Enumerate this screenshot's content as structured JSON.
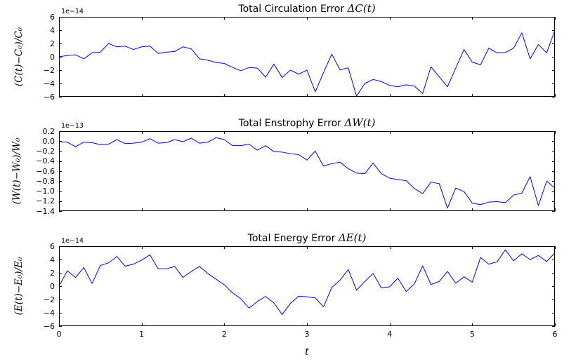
{
  "x_axis": {
    "label": "t",
    "ticks": [
      0,
      1,
      2,
      3,
      4,
      5,
      6
    ],
    "tick_labels": [
      "0",
      "1",
      "2",
      "3",
      "4",
      "5",
      "6"
    ]
  },
  "chart_data": [
    {
      "type": "line",
      "title_text": "Total Circulation Error ",
      "title_math": "ΔC(t)",
      "ylabel": "(C(t)−C₀)/C₀",
      "offset_label": "1e−14",
      "unit_scale": "1e-14",
      "xlim": [
        0,
        6
      ],
      "ylim": [
        -6,
        6
      ],
      "dt": 0.1,
      "grid": false,
      "yticks": [
        6,
        4,
        2,
        0,
        -2,
        -4,
        -6
      ],
      "ytick_labels": [
        "6",
        "4",
        "2",
        "0",
        "−2",
        "−4",
        "−6"
      ],
      "line_color": "#0000ee",
      "values": [
        0.0,
        0.2,
        0.3,
        -0.3,
        0.6,
        0.7,
        2.0,
        1.5,
        1.6,
        1.1,
        1.5,
        1.6,
        0.5,
        0.7,
        0.8,
        1.5,
        1.2,
        -0.3,
        -0.5,
        -0.85,
        -1.0,
        -1.6,
        -2.1,
        -1.6,
        -1.7,
        -3.05,
        -1.1,
        -3.1,
        -2.0,
        -2.6,
        -2.0,
        -5.25,
        -2.4,
        0.4,
        -1.95,
        -1.65,
        -5.9,
        -4.0,
        -3.4,
        -3.7,
        -4.3,
        -4.5,
        -4.2,
        -4.4,
        -5.5,
        -1.5,
        -3.0,
        -4.5,
        -1.7,
        1.1,
        -0.8,
        -1.2,
        1.3,
        0.6,
        0.65,
        1.3,
        3.6,
        -0.3,
        1.85,
        0.6,
        4.0
      ]
    },
    {
      "type": "line",
      "title_text": "Total Enstrophy Error ",
      "title_math": "ΔW(t)",
      "ylabel": "(W(t)−W₀)/W₀",
      "offset_label": "1e−13",
      "unit_scale": "1e-13",
      "xlim": [
        0,
        6
      ],
      "ylim": [
        -1.4,
        0.2
      ],
      "dt": 0.1,
      "grid": false,
      "yticks": [
        0.2,
        0.0,
        -0.2,
        -0.4,
        -0.6,
        -0.8,
        -1.0,
        -1.2,
        -1.4
      ],
      "ytick_labels": [
        "0.2",
        "0.0",
        "−0.2",
        "−0.4",
        "−0.6",
        "−0.8",
        "−1.0",
        "−1.2",
        "−1.4"
      ],
      "line_color": "#0000ee",
      "values": [
        -0.01,
        -0.02,
        -0.11,
        -0.02,
        -0.03,
        -0.07,
        -0.06,
        0.03,
        -0.05,
        -0.04,
        -0.02,
        0.05,
        -0.04,
        -0.03,
        0.03,
        -0.01,
        0.06,
        -0.04,
        -0.02,
        0.07,
        0.03,
        -0.09,
        -0.09,
        -0.06,
        -0.18,
        -0.09,
        -0.21,
        -0.22,
        -0.25,
        -0.27,
        -0.38,
        -0.2,
        -0.5,
        -0.45,
        -0.42,
        -0.55,
        -0.64,
        -0.65,
        -0.44,
        -0.65,
        -0.74,
        -0.77,
        -0.79,
        -0.95,
        -1.05,
        -0.82,
        -0.85,
        -1.34,
        -0.94,
        -1.01,
        -1.24,
        -1.27,
        -1.22,
        -1.21,
        -1.23,
        -1.08,
        -1.04,
        -0.71,
        -1.29,
        -0.8,
        -0.94
      ]
    },
    {
      "type": "line",
      "title_text": "Total Energy Error ",
      "title_math": "ΔE(t)",
      "ylabel": "(E(t)−E₀)/E₀",
      "offset_label": "1e−14",
      "unit_scale": "1e-14",
      "xlim": [
        0,
        6
      ],
      "ylim": [
        -6,
        6
      ],
      "dt": 0.1,
      "grid": false,
      "yticks": [
        6,
        4,
        2,
        0,
        -2,
        -4,
        -6
      ],
      "ytick_labels": [
        "6",
        "4",
        "2",
        "0",
        "−2",
        "−4",
        "−6"
      ],
      "line_color": "#0000ee",
      "values": [
        0.0,
        2.3,
        1.3,
        2.8,
        0.4,
        3.1,
        3.5,
        4.45,
        3.0,
        3.3,
        3.9,
        4.7,
        2.6,
        2.6,
        2.95,
        1.3,
        2.2,
        2.95,
        1.9,
        1.05,
        0.2,
        -1.0,
        -1.9,
        -3.3,
        -2.3,
        -1.55,
        -2.5,
        -4.26,
        -2.6,
        -1.5,
        -1.6,
        -1.75,
        -3.1,
        -0.2,
        0.9,
        2.5,
        -0.6,
        0.7,
        1.9,
        -0.25,
        -0.1,
        1.2,
        -0.8,
        0.35,
        3.05,
        0.25,
        0.7,
        2.2,
        0.45,
        1.4,
        0.6,
        4.3,
        3.3,
        3.65,
        5.45,
        3.8,
        4.85,
        4.0,
        4.6,
        3.7,
        5.0
      ]
    }
  ]
}
